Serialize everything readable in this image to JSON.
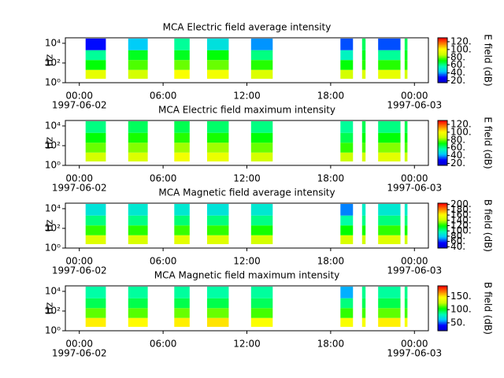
{
  "chart_data": [
    {
      "type": "spectrogram",
      "title": "MCA  Electric field average intensity",
      "ylabel": "Hz",
      "colorbar_label": "E field (dB)",
      "xlim": [
        -1,
        25
      ],
      "xticks": [
        {
          "value": 0,
          "label": "00:00"
        },
        {
          "value": 6,
          "label": "06:00"
        },
        {
          "value": 12,
          "label": "12:00"
        },
        {
          "value": 18,
          "label": "18:00"
        },
        {
          "value": 24,
          "label": "00:00"
        }
      ],
      "xtick_sublabels": [
        {
          "value": 0,
          "label": "1997-06-02"
        },
        {
          "value": 24,
          "label": "1997-06-03"
        }
      ],
      "log_y": true,
      "ylim": [
        1,
        36000
      ],
      "yticks": [
        {
          "value": 1,
          "label": "10⁰"
        },
        {
          "value": 100,
          "label": "10²"
        },
        {
          "value": 10000,
          "label": "10⁴"
        }
      ],
      "bands": [
        2.5,
        20,
        200,
        2000,
        30000
      ],
      "segments": [
        [
          0.45,
          1.9
        ],
        [
          3.5,
          4.9
        ],
        [
          6.8,
          7.9
        ],
        [
          9.15,
          10.7
        ],
        [
          12.3,
          13.85
        ],
        [
          18.7,
          19.6
        ],
        [
          20.25,
          20.5
        ],
        [
          21.4,
          23.0
        ],
        [
          23.3,
          23.5
        ]
      ],
      "z": [
        [
          95,
          72,
          60,
          30
        ],
        [
          90,
          78,
          70,
          45
        ],
        [
          100,
          80,
          70,
          60
        ],
        [
          98,
          80,
          72,
          50
        ],
        [
          92,
          75,
          62,
          40
        ],
        [
          90,
          72,
          55,
          35
        ],
        [
          92,
          75,
          70,
          65
        ],
        [
          95,
          75,
          60,
          35
        ],
        [
          90,
          75,
          70,
          65
        ]
      ],
      "clim": [
        15,
        130
      ],
      "cticks": [
        {
          "value": 20,
          "label": "20."
        },
        {
          "value": 40,
          "label": "40."
        },
        {
          "value": 60,
          "label": "60."
        },
        {
          "value": 80,
          "label": "80."
        },
        {
          "value": 100,
          "label": "100."
        },
        {
          "value": 120,
          "label": "120."
        }
      ],
      "colormap": [
        "#0000c8",
        "#0000ff",
        "#00c8ff",
        "#00ffb0",
        "#00ff00",
        "#c8ff00",
        "#ffff00",
        "#ff8000",
        "#ff0000"
      ]
    },
    {
      "type": "spectrogram",
      "title": "MCA  Electric field maximum intensity",
      "ylabel": "Hz",
      "colorbar_label": "E field (dB)",
      "xlim": [
        -1,
        25
      ],
      "xticks": [
        {
          "value": 0,
          "label": "00:00"
        },
        {
          "value": 6,
          "label": "06:00"
        },
        {
          "value": 12,
          "label": "12:00"
        },
        {
          "value": 18,
          "label": "18:00"
        },
        {
          "value": 24,
          "label": "00:00"
        }
      ],
      "xtick_sublabels": [
        {
          "value": 0,
          "label": "1997-06-02"
        },
        {
          "value": 24,
          "label": "1997-06-03"
        }
      ],
      "log_y": true,
      "ylim": [
        1,
        36000
      ],
      "yticks": [
        {
          "value": 1,
          "label": "10⁰"
        },
        {
          "value": 100,
          "label": "10²"
        },
        {
          "value": 10000,
          "label": "10⁴"
        }
      ],
      "bands": [
        2.5,
        20,
        200,
        2000,
        30000
      ],
      "segments": [
        [
          0.45,
          1.9
        ],
        [
          3.5,
          4.9
        ],
        [
          6.8,
          7.9
        ],
        [
          9.15,
          10.7
        ],
        [
          12.3,
          13.85
        ],
        [
          18.7,
          19.6
        ],
        [
          20.25,
          20.5
        ],
        [
          21.4,
          23.0
        ],
        [
          23.3,
          23.5
        ]
      ],
      "z": [
        [
          90,
          80,
          72,
          62
        ],
        [
          92,
          82,
          74,
          65
        ],
        [
          98,
          84,
          75,
          66
        ],
        [
          96,
          84,
          74,
          64
        ],
        [
          90,
          80,
          72,
          62
        ],
        [
          88,
          76,
          66,
          60
        ],
        [
          90,
          78,
          72,
          66
        ],
        [
          94,
          82,
          72,
          62
        ],
        [
          88,
          78,
          72,
          66
        ]
      ],
      "clim": [
        15,
        130
      ],
      "cticks": [
        {
          "value": 20,
          "label": "20."
        },
        {
          "value": 40,
          "label": "40."
        },
        {
          "value": 60,
          "label": "60."
        },
        {
          "value": 80,
          "label": "80."
        },
        {
          "value": 100,
          "label": "100."
        },
        {
          "value": 120,
          "label": "120."
        }
      ],
      "colormap": [
        "#0000c8",
        "#0000ff",
        "#00c8ff",
        "#00ffb0",
        "#00ff00",
        "#c8ff00",
        "#ffff00",
        "#ff8000",
        "#ff0000"
      ]
    },
    {
      "type": "spectrogram",
      "title": "MCA  Magnetic field average intensity",
      "ylabel": "Hz",
      "colorbar_label": "B field (dB)",
      "xlim": [
        -1,
        25
      ],
      "xticks": [
        {
          "value": 0,
          "label": "00:00"
        },
        {
          "value": 6,
          "label": "06:00"
        },
        {
          "value": 12,
          "label": "12:00"
        },
        {
          "value": 18,
          "label": "18:00"
        },
        {
          "value": 24,
          "label": "00:00"
        }
      ],
      "xtick_sublabels": [
        {
          "value": 0,
          "label": "1997-06-02"
        },
        {
          "value": 24,
          "label": "1997-06-03"
        }
      ],
      "log_y": true,
      "ylim": [
        1,
        36000
      ],
      "yticks": [
        {
          "value": 1,
          "label": "10⁰"
        },
        {
          "value": 100,
          "label": "10²"
        },
        {
          "value": 10000,
          "label": "10⁴"
        }
      ],
      "bands": [
        2.5,
        20,
        200,
        2000,
        30000
      ],
      "segments": [
        [
          0.45,
          1.9
        ],
        [
          3.5,
          4.9
        ],
        [
          6.8,
          7.9
        ],
        [
          9.15,
          10.7
        ],
        [
          12.3,
          13.85
        ],
        [
          18.7,
          19.6
        ],
        [
          20.25,
          20.5
        ],
        [
          21.4,
          23.0
        ],
        [
          23.3,
          23.5
        ]
      ],
      "z": [
        [
          150,
          125,
          105,
          88
        ],
        [
          148,
          124,
          104,
          90
        ],
        [
          152,
          126,
          106,
          90
        ],
        [
          150,
          125,
          105,
          88
        ],
        [
          146,
          122,
          104,
          90
        ],
        [
          148,
          120,
          100,
          70
        ],
        [
          145,
          122,
          104,
          92
        ],
        [
          150,
          125,
          105,
          90
        ],
        [
          145,
          122,
          105,
          92
        ]
      ],
      "clim": [
        35,
        205
      ],
      "cticks": [
        {
          "value": 40,
          "label": "40."
        },
        {
          "value": 60,
          "label": "60."
        },
        {
          "value": 80,
          "label": "80."
        },
        {
          "value": 100,
          "label": "100."
        },
        {
          "value": 120,
          "label": "120."
        },
        {
          "value": 140,
          "label": "140."
        },
        {
          "value": 160,
          "label": "160."
        },
        {
          "value": 180,
          "label": "180."
        },
        {
          "value": 200,
          "label": "200."
        }
      ],
      "colormap": [
        "#0000c8",
        "#0000ff",
        "#00c8ff",
        "#00ffb0",
        "#00ff00",
        "#c8ff00",
        "#ffff00",
        "#ff8000",
        "#ff0000"
      ]
    },
    {
      "type": "spectrogram",
      "title": "MCA  Magnetic field maximum intensity",
      "ylabel": "Hz",
      "colorbar_label": "B field (dB)",
      "xlim": [
        -1,
        25
      ],
      "xticks": [
        {
          "value": 0,
          "label": "00:00"
        },
        {
          "value": 6,
          "label": "06:00"
        },
        {
          "value": 12,
          "label": "12:00"
        },
        {
          "value": 18,
          "label": "18:00"
        },
        {
          "value": 24,
          "label": "00:00"
        }
      ],
      "xtick_sublabels": [
        {
          "value": 0,
          "label": "1997-06-02"
        },
        {
          "value": 24,
          "label": "1997-06-03"
        }
      ],
      "log_y": true,
      "ylim": [
        1,
        36000
      ],
      "yticks": [
        {
          "value": 1,
          "label": "10⁰"
        },
        {
          "value": 100,
          "label": "10²"
        },
        {
          "value": 10000,
          "label": "10⁴"
        }
      ],
      "bands": [
        2.5,
        20,
        200,
        2000,
        30000
      ],
      "segments": [
        [
          0.45,
          1.9
        ],
        [
          3.5,
          4.9
        ],
        [
          6.8,
          7.9
        ],
        [
          9.15,
          10.7
        ],
        [
          12.3,
          13.85
        ],
        [
          18.7,
          19.6
        ],
        [
          20.25,
          20.5
        ],
        [
          21.4,
          23.0
        ],
        [
          23.3,
          23.5
        ]
      ],
      "z": [
        [
          150,
          115,
          95,
          85
        ],
        [
          148,
          114,
          96,
          86
        ],
        [
          150,
          116,
          96,
          86
        ],
        [
          152,
          116,
          96,
          85
        ],
        [
          146,
          112,
          94,
          86
        ],
        [
          145,
          110,
          90,
          60
        ],
        [
          144,
          112,
          95,
          88
        ],
        [
          150,
          115,
          96,
          86
        ],
        [
          144,
          112,
          95,
          88
        ]
      ],
      "clim": [
        20,
        190
      ],
      "cticks": [
        {
          "value": 50,
          "label": "50."
        },
        {
          "value": 100,
          "label": "100."
        },
        {
          "value": 150,
          "label": "150."
        }
      ],
      "colormap": [
        "#0000c8",
        "#0000ff",
        "#00c8ff",
        "#00ffb0",
        "#00ff00",
        "#c8ff00",
        "#ffff00",
        "#ff8000",
        "#ff0000"
      ]
    }
  ]
}
